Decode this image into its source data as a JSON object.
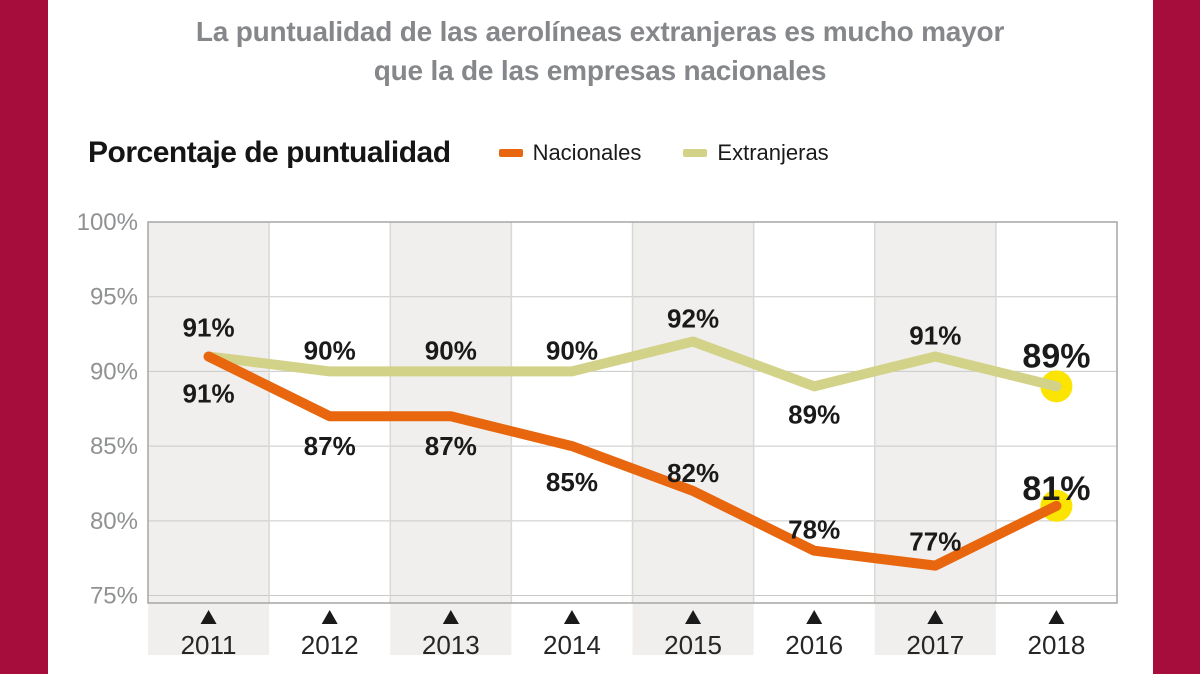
{
  "title": {
    "line1": "La puntualidad de las aerolíneas extranjeras es mucho mayor",
    "line2": "que la de las empresas nacionales"
  },
  "colors": {
    "accent_bar": "#a70d3c",
    "background": "#ffffff",
    "stripe": "#f0efed",
    "gridline": "#c9c9c8",
    "plot_border": "#a5a5a3",
    "column_separator": "#d8d8d6",
    "y_label": "#8f9193",
    "x_label": "#262626",
    "data_label": "#1a1a1a",
    "title_gray": "#85878a",
    "highlight_dot": "#fbe400"
  },
  "chart_data": {
    "type": "line",
    "title": "Porcentaje de puntualidad",
    "categories": [
      "2011",
      "2012",
      "2013",
      "2014",
      "2015",
      "2016",
      "2017",
      "2018"
    ],
    "series": [
      {
        "name": "Nacionales",
        "color": "#e7660e",
        "values": [
          91,
          87,
          87,
          85,
          82,
          78,
          77,
          81
        ],
        "label_dy": [
          46,
          39,
          39,
          45,
          -9,
          -12,
          -15,
          -6
        ]
      },
      {
        "name": "Extranjeras",
        "color": "#d3d289",
        "values": [
          91,
          90,
          90,
          90,
          92,
          89,
          91,
          89
        ],
        "label_dy": [
          -20,
          -12,
          -12,
          -12,
          -14,
          37,
          -12,
          -19
        ]
      }
    ],
    "ylabel": "Porcentaje de puntualidad",
    "xlabel": "",
    "ylim": [
      74.5,
      100
    ],
    "yticks": [
      100,
      95,
      90,
      85,
      80,
      75
    ],
    "ytick_suffix": "%",
    "grid": true,
    "striped_columns": [
      0,
      2,
      4,
      6
    ],
    "x_marker": "triangle-up",
    "highlight_last_point": true,
    "highlight_radius": 16,
    "legend_position": "top"
  }
}
